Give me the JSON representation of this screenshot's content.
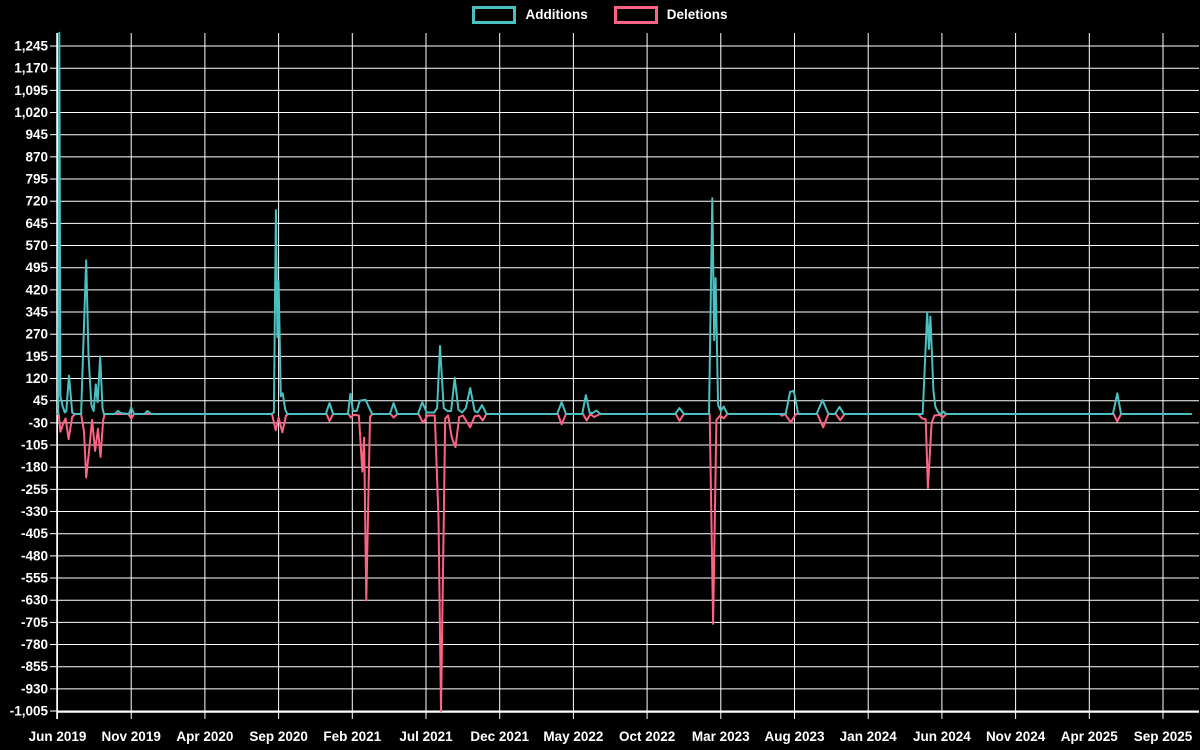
{
  "legend": {
    "additions_label": "Additions",
    "deletions_label": "Deletions"
  },
  "colors": {
    "additions": "#4bc0c0",
    "deletions": "#ff6384",
    "background": "#000000",
    "grid": "#ffffff",
    "text": "#ffffff"
  },
  "chart_data": {
    "type": "line",
    "title": "",
    "xlabel": "",
    "ylabel": "",
    "grid": true,
    "legend_position": "top-center",
    "x_unit": "months since Jun 2019 (ticks every 5 months)",
    "x_tick_labels": [
      "Jun 2019",
      "Nov 2019",
      "Apr 2020",
      "Sep 2020",
      "Feb 2021",
      "Jul 2021",
      "Dec 2021",
      "May 2022",
      "Oct 2022",
      "Mar 2023",
      "Aug 2023",
      "Jan 2024",
      "Jun 2024",
      "Nov 2024",
      "Apr 2025",
      "Sep 2025"
    ],
    "y_ticks": [
      1245,
      1170,
      1095,
      1020,
      945,
      870,
      795,
      720,
      645,
      570,
      495,
      420,
      345,
      270,
      195,
      120,
      45,
      -30,
      -105,
      -180,
      -255,
      -330,
      -405,
      -480,
      -555,
      -630,
      -705,
      -780,
      -855,
      -930,
      -1005
    ],
    "ylim": [
      -1005,
      1290
    ],
    "series": [
      {
        "name": "Additions",
        "color": "#4bc0c0",
        "points": [
          [
            0,
            0
          ],
          [
            0.05,
            0
          ],
          [
            0.12,
            1290
          ],
          [
            0.2,
            60
          ],
          [
            0.35,
            25
          ],
          [
            0.5,
            5
          ],
          [
            0.6,
            10
          ],
          [
            0.78,
            130
          ],
          [
            1.0,
            5
          ],
          [
            1.15,
            0
          ],
          [
            1.6,
            0
          ],
          [
            1.8,
            300
          ],
          [
            1.95,
            520
          ],
          [
            2.1,
            200
          ],
          [
            2.3,
            30
          ],
          [
            2.45,
            10
          ],
          [
            2.6,
            100
          ],
          [
            2.72,
            40
          ],
          [
            2.9,
            195
          ],
          [
            3.05,
            20
          ],
          [
            3.15,
            0
          ],
          [
            3.9,
            0
          ],
          [
            4.1,
            10
          ],
          [
            4.3,
            3
          ],
          [
            4.85,
            0
          ],
          [
            5.0,
            22
          ],
          [
            5.2,
            0
          ],
          [
            5.9,
            0
          ],
          [
            6.1,
            10
          ],
          [
            6.35,
            0
          ],
          [
            14.5,
            0
          ],
          [
            14.68,
            5
          ],
          [
            14.82,
            690
          ],
          [
            14.92,
            260
          ],
          [
            15.0,
            450
          ],
          [
            15.15,
            60
          ],
          [
            15.28,
            70
          ],
          [
            15.45,
            15
          ],
          [
            15.6,
            0
          ],
          [
            18.2,
            0
          ],
          [
            18.45,
            37
          ],
          [
            18.7,
            0
          ],
          [
            19.7,
            0
          ],
          [
            19.87,
            68
          ],
          [
            20.05,
            10
          ],
          [
            20.3,
            10
          ],
          [
            20.5,
            45
          ],
          [
            20.9,
            48
          ],
          [
            21.15,
            20
          ],
          [
            21.35,
            0
          ],
          [
            22.55,
            0
          ],
          [
            22.8,
            37
          ],
          [
            23.05,
            0
          ],
          [
            24.45,
            0
          ],
          [
            24.75,
            40
          ],
          [
            25.05,
            5
          ],
          [
            25.55,
            5
          ],
          [
            25.75,
            20
          ],
          [
            25.95,
            230
          ],
          [
            26.2,
            20
          ],
          [
            26.45,
            10
          ],
          [
            26.7,
            10
          ],
          [
            26.95,
            122
          ],
          [
            27.2,
            15
          ],
          [
            27.45,
            5
          ],
          [
            27.7,
            20
          ],
          [
            28.0,
            88
          ],
          [
            28.3,
            10
          ],
          [
            28.5,
            5
          ],
          [
            28.8,
            30
          ],
          [
            29.1,
            0
          ],
          [
            33.9,
            0
          ],
          [
            34.2,
            40
          ],
          [
            34.5,
            0
          ],
          [
            35.6,
            0
          ],
          [
            35.85,
            64
          ],
          [
            36.1,
            5
          ],
          [
            36.3,
            3
          ],
          [
            36.55,
            12
          ],
          [
            36.85,
            0
          ],
          [
            41.9,
            0
          ],
          [
            42.2,
            20
          ],
          [
            42.5,
            0
          ],
          [
            44.2,
            0
          ],
          [
            44.42,
            730
          ],
          [
            44.55,
            250
          ],
          [
            44.65,
            460
          ],
          [
            44.82,
            30
          ],
          [
            45.0,
            10
          ],
          [
            45.2,
            25
          ],
          [
            45.45,
            0
          ],
          [
            49.4,
            0
          ],
          [
            49.7,
            75
          ],
          [
            49.95,
            78
          ],
          [
            50.25,
            0
          ],
          [
            51.5,
            0
          ],
          [
            51.9,
            47
          ],
          [
            52.3,
            0
          ],
          [
            52.75,
            0
          ],
          [
            53.05,
            24
          ],
          [
            53.35,
            0
          ],
          [
            58.7,
            0
          ],
          [
            59.0,
            345
          ],
          [
            59.12,
            220
          ],
          [
            59.22,
            330
          ],
          [
            59.42,
            80
          ],
          [
            59.55,
            25
          ],
          [
            59.75,
            5
          ],
          [
            59.95,
            0
          ],
          [
            60.1,
            8
          ],
          [
            60.3,
            0
          ],
          [
            71.6,
            0
          ],
          [
            71.9,
            70
          ],
          [
            72.15,
            0
          ],
          [
            76.9,
            0
          ]
        ]
      },
      {
        "name": "Deletions",
        "color": "#ff6384",
        "points": [
          [
            0,
            0
          ],
          [
            0.08,
            0
          ],
          [
            0.2,
            -60
          ],
          [
            0.4,
            -30
          ],
          [
            0.55,
            -15
          ],
          [
            0.75,
            -85
          ],
          [
            1.0,
            -10
          ],
          [
            1.2,
            0
          ],
          [
            1.6,
            0
          ],
          [
            1.8,
            -60
          ],
          [
            1.95,
            -215
          ],
          [
            2.15,
            -120
          ],
          [
            2.35,
            -20
          ],
          [
            2.55,
            -125
          ],
          [
            2.75,
            -50
          ],
          [
            2.92,
            -145
          ],
          [
            3.1,
            -20
          ],
          [
            3.2,
            0
          ],
          [
            4.8,
            0
          ],
          [
            5.0,
            -15
          ],
          [
            5.2,
            0
          ],
          [
            14.55,
            0
          ],
          [
            14.8,
            -55
          ],
          [
            15.0,
            -12
          ],
          [
            15.25,
            -62
          ],
          [
            15.5,
            -5
          ],
          [
            15.65,
            0
          ],
          [
            18.25,
            0
          ],
          [
            18.45,
            -24
          ],
          [
            18.7,
            0
          ],
          [
            19.75,
            0
          ],
          [
            19.9,
            -12
          ],
          [
            20.1,
            -3
          ],
          [
            20.45,
            -5
          ],
          [
            20.68,
            -195
          ],
          [
            20.8,
            -80
          ],
          [
            20.95,
            -630
          ],
          [
            21.2,
            -10
          ],
          [
            21.35,
            0
          ],
          [
            22.6,
            0
          ],
          [
            22.8,
            -12
          ],
          [
            23.05,
            0
          ],
          [
            24.5,
            0
          ],
          [
            24.8,
            -30
          ],
          [
            25.1,
            -5
          ],
          [
            25.6,
            -5
          ],
          [
            25.85,
            -350
          ],
          [
            26.02,
            -1005
          ],
          [
            26.3,
            -15
          ],
          [
            26.5,
            -5
          ],
          [
            26.75,
            -80
          ],
          [
            27.0,
            -112
          ],
          [
            27.25,
            -10
          ],
          [
            27.5,
            -5
          ],
          [
            28.0,
            -45
          ],
          [
            28.3,
            -8
          ],
          [
            28.6,
            -5
          ],
          [
            28.85,
            -22
          ],
          [
            29.1,
            0
          ],
          [
            33.95,
            0
          ],
          [
            34.2,
            -35
          ],
          [
            34.5,
            0
          ],
          [
            35.65,
            0
          ],
          [
            35.9,
            -22
          ],
          [
            36.15,
            0
          ],
          [
            36.4,
            -10
          ],
          [
            36.8,
            0
          ],
          [
            41.95,
            0
          ],
          [
            42.2,
            -23
          ],
          [
            42.5,
            0
          ],
          [
            44.25,
            0
          ],
          [
            44.48,
            -710
          ],
          [
            44.7,
            -20
          ],
          [
            44.95,
            -5
          ],
          [
            45.2,
            -15
          ],
          [
            45.45,
            0
          ],
          [
            49.0,
            0
          ],
          [
            49.15,
            -6
          ],
          [
            49.35,
            0
          ],
          [
            49.75,
            -28
          ],
          [
            50.1,
            0
          ],
          [
            51.55,
            0
          ],
          [
            51.95,
            -45
          ],
          [
            52.3,
            0
          ],
          [
            52.8,
            0
          ],
          [
            53.1,
            -21
          ],
          [
            53.4,
            0
          ],
          [
            58.4,
            0
          ],
          [
            58.65,
            -15
          ],
          [
            58.9,
            -18
          ],
          [
            59.05,
            -250
          ],
          [
            59.3,
            -30
          ],
          [
            59.5,
            -5
          ],
          [
            59.85,
            -3
          ],
          [
            60.05,
            -12
          ],
          [
            60.3,
            0
          ],
          [
            71.65,
            0
          ],
          [
            71.9,
            -25
          ],
          [
            72.15,
            0
          ],
          [
            76.9,
            0
          ]
        ]
      }
    ]
  }
}
